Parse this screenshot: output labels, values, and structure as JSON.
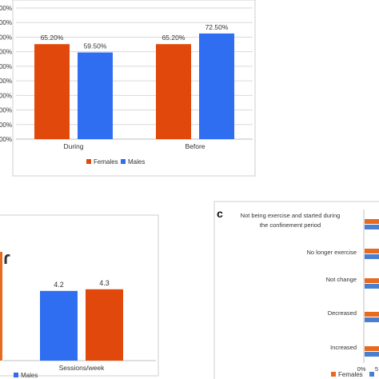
{
  "colors": {
    "females": "#e0490b",
    "males": "#2f6ef0",
    "males_c": "#4a7fd0",
    "females_c": "#e86a1e",
    "grid": "#d9d9d9",
    "axis": "#9a9a9a",
    "text": "#333333"
  },
  "chart_data": [
    {
      "type": "bar",
      "categories": [
        "During",
        "Before"
      ],
      "series": [
        {
          "name": "Females",
          "values": [
            65.2,
            65.2
          ],
          "labels": [
            "65.20%",
            "65.20%"
          ]
        },
        {
          "name": "Males",
          "values": [
            59.5,
            72.5
          ],
          "labels": [
            "59.50%",
            "72.50%"
          ]
        }
      ],
      "ytick_labels": [
        "00%",
        "00%",
        "00%",
        "00%",
        "00%",
        "00%",
        "00%",
        "00%",
        "00%",
        "00%"
      ],
      "ylim": [
        0,
        90
      ],
      "legend": "bottom-center",
      "grid": true
    },
    {
      "type": "bar",
      "categories": [
        "Sessions/week"
      ],
      "series": [
        {
          "name": "Males",
          "values": [
            4.2
          ],
          "labels": [
            "4.2"
          ]
        },
        {
          "name": "Females",
          "values": [
            4.3
          ],
          "labels": [
            "4.3"
          ]
        }
      ],
      "legend_visible": [
        "Males"
      ],
      "ylim": [
        0,
        8
      ],
      "legend": "bottom-left",
      "grid": false
    },
    {
      "type": "bar",
      "orientation": "horizontal",
      "panel_label": "c",
      "categories": [
        "Not being exercise and started during the confinement period",
        "No longer exercise",
        "Not change",
        "Decreased",
        "Increased"
      ],
      "xtick_labels": [
        "0%",
        "5"
      ],
      "series": [
        {
          "name": "Females",
          "values": [
            null,
            null,
            null,
            null,
            null
          ]
        },
        {
          "name": "Males",
          "values": [
            null,
            null,
            null,
            null,
            null
          ]
        }
      ],
      "legend": "bottom",
      "grid": true
    }
  ]
}
